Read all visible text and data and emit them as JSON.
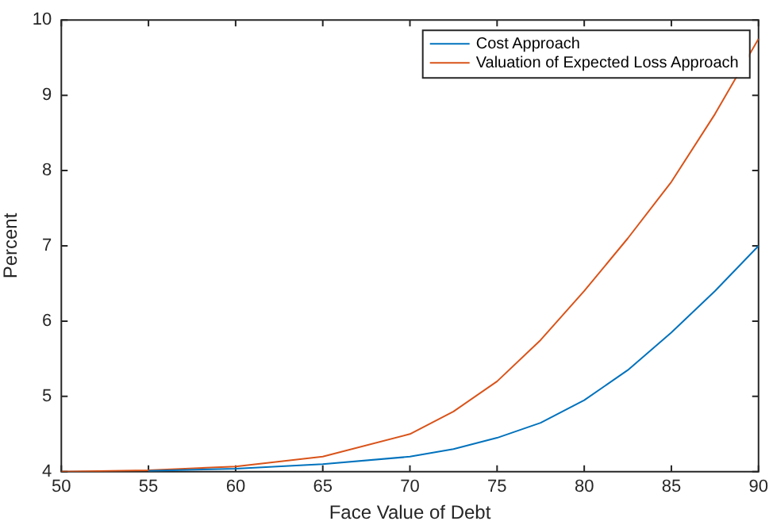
{
  "chart_data": {
    "type": "line",
    "xlabel": "Face Value of Debt",
    "ylabel": "Percent",
    "x": [
      50,
      55,
      60,
      65,
      70,
      72.5,
      75,
      77.5,
      80,
      82.5,
      85,
      87.5,
      90
    ],
    "series": [
      {
        "name": "Cost Approach",
        "color": "#0072bd",
        "values": [
          null,
          4.01,
          4.04,
          4.1,
          4.2,
          4.3,
          4.45,
          4.65,
          4.95,
          5.35,
          5.85,
          6.4,
          7.0
        ]
      },
      {
        "name": "Valuation of Expected Loss Approach",
        "color": "#d95319",
        "values": [
          4.0,
          4.02,
          4.07,
          4.2,
          4.5,
          4.8,
          5.2,
          5.75,
          6.4,
          7.1,
          7.85,
          8.75,
          9.75
        ]
      }
    ],
    "xlim": [
      50,
      90
    ],
    "xticks": [
      50,
      55,
      60,
      65,
      70,
      75,
      80,
      85,
      90
    ],
    "ylim": [
      4,
      10
    ],
    "yticks": [
      4,
      5,
      6,
      7,
      8,
      9,
      10
    ],
    "grid": false,
    "legend": "top right",
    "marker": "none",
    "line_style": "solid"
  }
}
